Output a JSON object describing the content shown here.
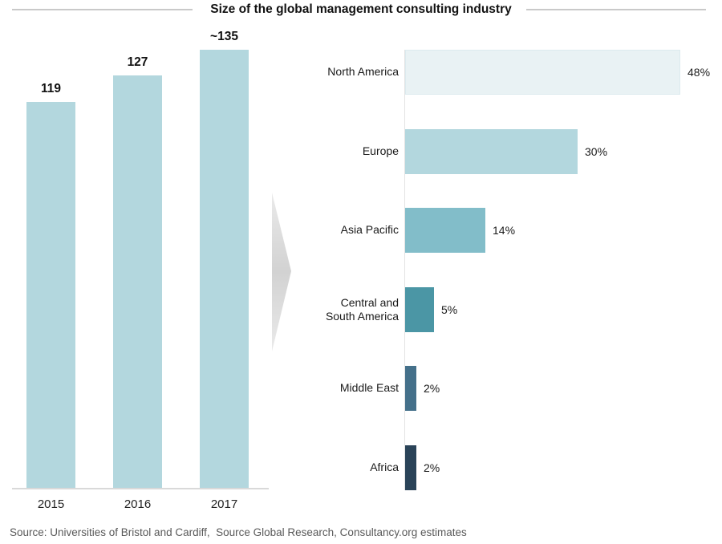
{
  "title": "Size of the global management consulting industry",
  "source": "Source: Universities of Bristol and Cardiff,  Source Global Research, Consultancy.org estimates",
  "chart_data": [
    {
      "type": "bar",
      "orientation": "vertical",
      "categories": [
        "2015",
        "2016",
        "2017"
      ],
      "values": [
        119,
        127,
        135
      ],
      "value_labels": [
        "119",
        "127",
        "~135"
      ],
      "bar_color": "#b3d7de",
      "axis_line_color": "#d9d9d9",
      "ylim": [
        0,
        140
      ],
      "grid": "off",
      "legend": "none"
    },
    {
      "type": "bar",
      "orientation": "horizontal",
      "categories": [
        "North America",
        "Europe",
        "Asia Pacific",
        "Central and South America",
        "Middle East",
        "Africa"
      ],
      "values": [
        48,
        30,
        14,
        5,
        2,
        2
      ],
      "value_labels": [
        "48%",
        "30%",
        "14%",
        "5%",
        "2%",
        "2%"
      ],
      "bar_colors": [
        "#e9f2f4",
        "#b3d7de",
        "#82bdc9",
        "#4b96a5",
        "#44708a",
        "#2a4358"
      ],
      "axis_line_color": "#e4e4e4",
      "xlim": [
        0,
        50
      ],
      "grid": "off",
      "legend": "none"
    }
  ],
  "arrow": {
    "color_light": "#e9e9e9",
    "color_dark": "#d2d2d2"
  }
}
